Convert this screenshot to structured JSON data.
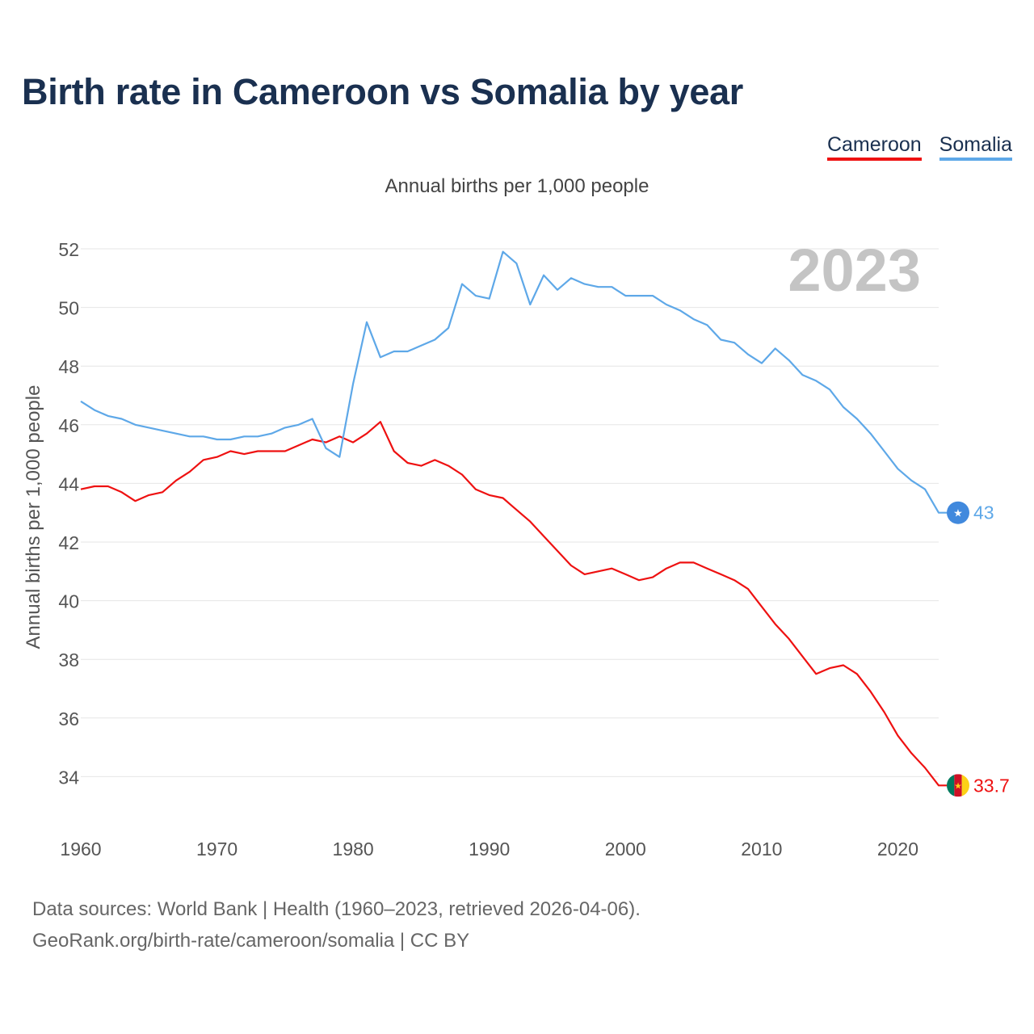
{
  "title": "Birth rate in Cameroon vs Somalia by year",
  "subtitle": "Annual births per 1,000 people",
  "legend": [
    {
      "name": "Cameroon",
      "color": "#ee1111"
    },
    {
      "name": "Somalia",
      "color": "#5ea8e8"
    }
  ],
  "source": {
    "line1": "Data sources: World Bank | Health (1960–2023, retrieved 2026-04-06).",
    "line2": "GeoRank.org/birth-rate/cameroon/somalia | CC BY"
  },
  "chart_data": {
    "type": "line",
    "title": "Birth rate in Cameroon vs Somalia by year",
    "ylabel": "Annual births per 1,000 people",
    "xlabel": "",
    "year_watermark": "2023",
    "xlim": [
      1960,
      2023
    ],
    "ylim": [
      32.5,
      52.5
    ],
    "x_ticks": [
      1960,
      1970,
      1980,
      1990,
      2000,
      2010,
      2020
    ],
    "y_ticks": [
      34,
      36,
      38,
      40,
      42,
      44,
      46,
      48,
      50,
      52
    ],
    "grid": true,
    "x": [
      1960,
      1961,
      1962,
      1963,
      1964,
      1965,
      1966,
      1967,
      1968,
      1969,
      1970,
      1971,
      1972,
      1973,
      1974,
      1975,
      1976,
      1977,
      1978,
      1979,
      1980,
      1981,
      1982,
      1983,
      1984,
      1985,
      1986,
      1987,
      1988,
      1989,
      1990,
      1991,
      1992,
      1993,
      1994,
      1995,
      1996,
      1997,
      1998,
      1999,
      2000,
      2001,
      2002,
      2003,
      2004,
      2005,
      2006,
      2007,
      2008,
      2009,
      2010,
      2011,
      2012,
      2013,
      2014,
      2015,
      2016,
      2017,
      2018,
      2019,
      2020,
      2021,
      2022,
      2023
    ],
    "series": [
      {
        "name": "Cameroon",
        "color": "#ee1111",
        "end_label": "33.7",
        "flag": "cameroon-flag",
        "values": [
          43.8,
          43.9,
          43.9,
          43.7,
          43.4,
          43.6,
          43.7,
          44.1,
          44.4,
          44.8,
          44.9,
          45.1,
          45.0,
          45.1,
          45.1,
          45.1,
          45.3,
          45.5,
          45.4,
          45.6,
          45.4,
          45.7,
          46.1,
          45.1,
          44.7,
          44.6,
          44.8,
          44.6,
          44.3,
          43.8,
          43.6,
          43.5,
          43.1,
          42.7,
          42.2,
          41.7,
          41.2,
          40.9,
          41.0,
          41.1,
          40.9,
          40.7,
          40.8,
          41.1,
          41.3,
          41.3,
          41.1,
          40.9,
          40.7,
          40.4,
          39.8,
          39.2,
          38.7,
          38.1,
          37.5,
          37.7,
          37.8,
          37.5,
          36.9,
          36.2,
          35.4,
          34.8,
          34.3,
          33.7
        ]
      },
      {
        "name": "Somalia",
        "color": "#5ea8e8",
        "end_label": "43",
        "flag": "somalia-flag",
        "values": [
          46.8,
          46.5,
          46.3,
          46.2,
          46.0,
          45.9,
          45.8,
          45.7,
          45.6,
          45.6,
          45.5,
          45.5,
          45.6,
          45.6,
          45.7,
          45.9,
          46.0,
          46.2,
          45.2,
          44.9,
          47.4,
          49.5,
          48.3,
          48.5,
          48.5,
          48.7,
          48.9,
          49.3,
          50.8,
          50.4,
          50.3,
          51.9,
          51.5,
          50.1,
          51.1,
          50.6,
          51.0,
          50.8,
          50.7,
          50.7,
          50.4,
          50.4,
          50.4,
          50.1,
          49.9,
          49.6,
          49.4,
          48.9,
          48.8,
          48.4,
          48.1,
          48.6,
          48.2,
          47.7,
          47.5,
          47.2,
          46.6,
          46.2,
          45.7,
          45.1,
          44.5,
          44.1,
          43.8,
          43.0
        ]
      }
    ]
  }
}
